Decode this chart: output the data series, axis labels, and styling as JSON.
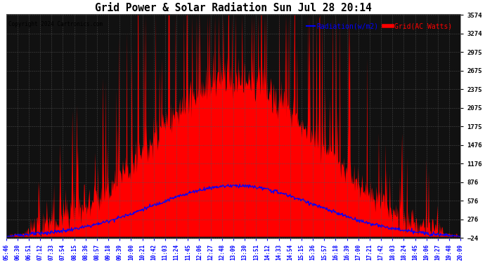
{
  "title": "Grid Power & Solar Radiation Sun Jul 28 20:14",
  "copyright": "Copyright 2024 Cartronics.com",
  "legend_radiation": "Radiation(w/m2)",
  "legend_grid": "Grid(AC Watts)",
  "yticks": [
    3574.3,
    3274.5,
    2974.7,
    2674.9,
    2375.1,
    2075.2,
    1775.4,
    1475.6,
    1175.8,
    876.0,
    576.1,
    276.3,
    -23.5
  ],
  "ymin": -23.5,
  "ymax": 3574.3,
  "radiation_color": "blue",
  "grid_color": "red",
  "plot_bg_color": "#111111",
  "fig_bg_color": "#ffffff",
  "grid_line_color": "#555555",
  "xtick_labels": [
    "05:46",
    "06:30",
    "06:51",
    "07:12",
    "07:33",
    "07:54",
    "08:15",
    "08:36",
    "08:57",
    "09:18",
    "09:39",
    "10:00",
    "10:21",
    "10:42",
    "11:03",
    "11:24",
    "11:45",
    "12:06",
    "12:27",
    "12:48",
    "13:09",
    "13:30",
    "13:51",
    "14:12",
    "14:33",
    "14:54",
    "15:15",
    "15:36",
    "15:57",
    "16:18",
    "16:39",
    "17:00",
    "17:21",
    "17:42",
    "18:03",
    "18:24",
    "18:45",
    "19:06",
    "19:27",
    "19:48",
    "20:09"
  ]
}
